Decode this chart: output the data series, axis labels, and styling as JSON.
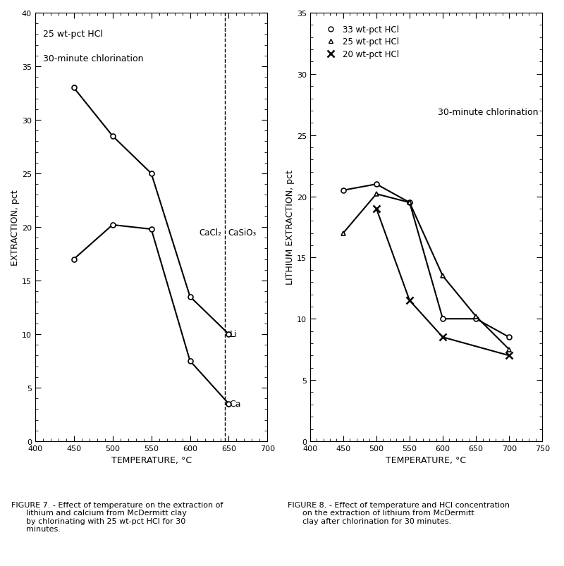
{
  "fig7": {
    "title_text1": "25 wt-pct HCl",
    "title_text2": "30-minute chlorination",
    "xlabel": "TEMPERATURE, °C",
    "ylabel": "EXTRACTION, pct",
    "xlim": [
      400,
      700
    ],
    "ylim": [
      0,
      40
    ],
    "xticks": [
      400,
      450,
      500,
      550,
      600,
      650,
      700
    ],
    "yticks": [
      0,
      5,
      10,
      15,
      20,
      25,
      30,
      35,
      40
    ],
    "li_x": [
      450,
      500,
      550,
      600,
      650
    ],
    "li_y": [
      33.0,
      28.5,
      25.0,
      13.5,
      10.0
    ],
    "ca_x": [
      450,
      500,
      550,
      600,
      650
    ],
    "ca_y": [
      17.0,
      20.2,
      19.8,
      7.5,
      3.5
    ],
    "dashed_x": 645,
    "cacl2_label": "CaCl₂",
    "casio3_label": "CaSiO₃",
    "li_label": "Li",
    "ca_label": "Ca",
    "caption_line1": "FIGURE 7. - Effect of temperature on the extraction of",
    "caption_line2": "      lithium and calcium from McDermitt clay",
    "caption_line3": "      by chlorinating with 25 wt-pct HCl for 30",
    "caption_line4": "      minutes."
  },
  "fig8": {
    "title_text": "30-minute chlorination",
    "xlabel": "TEMPERATURE, °C",
    "ylabel": "LITHIUM EXTRACTION, pct",
    "xlim": [
      400,
      750
    ],
    "ylim": [
      0,
      35
    ],
    "xticks": [
      400,
      450,
      500,
      550,
      600,
      650,
      700,
      750
    ],
    "yticks": [
      0,
      5,
      10,
      15,
      20,
      25,
      30,
      35
    ],
    "series33_x": [
      450,
      500,
      550,
      600,
      650,
      700
    ],
    "series33_y": [
      20.5,
      21.0,
      19.5,
      10.0,
      10.0,
      8.5
    ],
    "series25_x": [
      450,
      500,
      550,
      600,
      650,
      700
    ],
    "series25_y": [
      17.0,
      20.2,
      19.5,
      13.5,
      10.2,
      7.5
    ],
    "series20_x": [
      500,
      550,
      600,
      700
    ],
    "series20_y": [
      19.0,
      11.5,
      8.5,
      7.0
    ],
    "legend_o": "33 wt-pct HCl",
    "legend_tri": "25 wt-pct HCl",
    "legend_x": "20 wt-pct HCl",
    "caption_line1": "FIGURE 8. - Effect of temperature and HCl concentration",
    "caption_line2": "      on the extraction of lithium from McDermitt",
    "caption_line3": "      clay after chlorination for 30 minutes."
  }
}
